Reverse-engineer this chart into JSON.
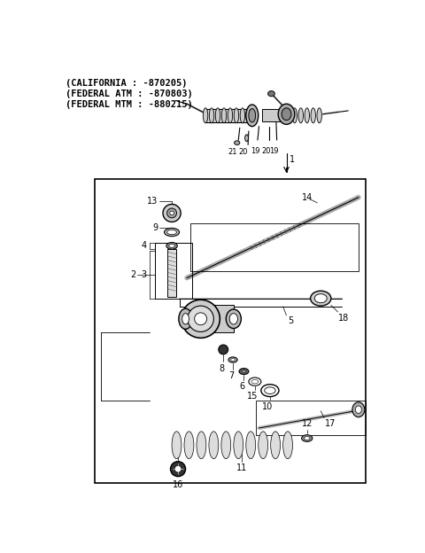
{
  "bg_color": "#ffffff",
  "header_text": [
    "(CALIFORNIA : -870205)",
    "(FEDERAL ATM : -870803)",
    "(FEDERAL MTM : -880215)"
  ],
  "header_font_size": 7.5,
  "font_size_labels": 7,
  "label_font_weight": "normal"
}
